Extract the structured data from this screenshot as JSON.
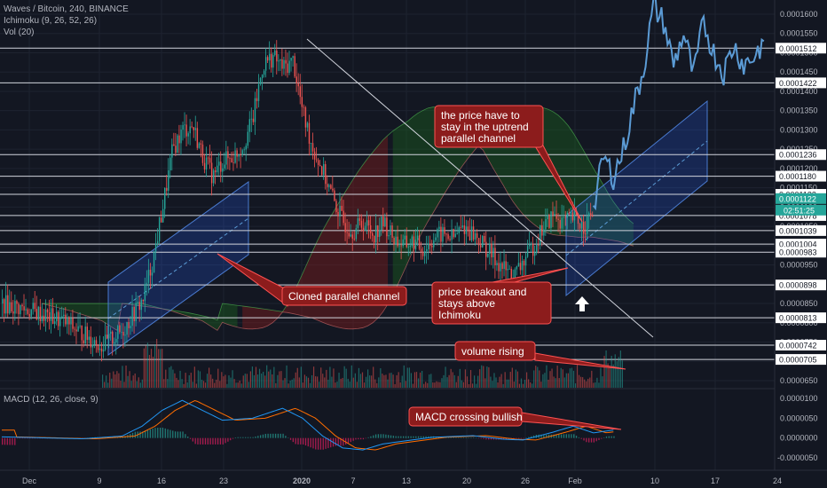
{
  "header": {
    "symbol_line": "Waves / Bitcoin, 240, BINANCE",
    "indicator_1": "Ichimoku (9, 26, 52, 26)",
    "indicator_2": "Vol (20)",
    "macd_label": "MACD (12, 26, close, 9)"
  },
  "colors": {
    "background": "#131722",
    "candle_up": "#26a69a",
    "candle_down": "#ef5350",
    "projection_line": "#5b9bd5",
    "channel_fill": "#2962ff",
    "annotation_bg": "#8c1c1c",
    "annotation_border": "#ff5252",
    "macd_line": "#2196f3",
    "signal_line": "#ff6d00",
    "ichimoku_bull_cloud": "#1b5e20",
    "ichimoku_bear_cloud": "#7f1d1d"
  },
  "chart_data": {
    "type": "candlestick",
    "x_tick_labels": [
      "Dec",
      "9",
      "16",
      "23",
      "2020",
      "7",
      "13",
      "20",
      "26",
      "Feb",
      "10",
      "17",
      "24"
    ],
    "y_ticks": [
      "0.0001600",
      "0.0001550",
      "0.0001500",
      "0.0001450",
      "0.0001400",
      "0.0001350",
      "0.0001300",
      "0.0001250",
      "0.0001200",
      "0.0001150",
      "0.0001100",
      "0.0001050",
      "0.0001000",
      "0.0000950",
      "0.0000900",
      "0.0000850",
      "0.0000800",
      "0.0000750",
      "0.0000700",
      "0.0000650"
    ],
    "ylim": [
      6.4e-05,
      0.000166
    ],
    "horizontal_levels": [
      "0.0001512",
      "0.0001422",
      "0.0001236",
      "0.0001180",
      "0.0001133",
      "0.0001078",
      "0.0001039",
      "0.0001004",
      "0.0000983",
      "0.0000898",
      "0.0000813",
      "0.0000742",
      "0.0000705"
    ],
    "current_price": "0.0001122",
    "countdown": "02:51:25",
    "price_path": [
      {
        "x": 0,
        "y": 8.5e-05
      },
      {
        "x": 3,
        "y": 8.3e-05
      },
      {
        "x": 6,
        "y": 8.05e-05
      },
      {
        "x": 8,
        "y": 7.72e-05
      },
      {
        "x": 10,
        "y": 7.4e-05
      },
      {
        "x": 12,
        "y": 7.8e-05
      },
      {
        "x": 14,
        "y": 8.6e-05
      },
      {
        "x": 15,
        "y": 9.6e-05
      },
      {
        "x": 16,
        "y": 0.00011
      },
      {
        "x": 17,
        "y": 0.000125
      },
      {
        "x": 18,
        "y": 0.00013
      },
      {
        "x": 19,
        "y": 0.000131
      },
      {
        "x": 20,
        "y": 0.000123
      },
      {
        "x": 21,
        "y": 0.000118
      },
      {
        "x": 22,
        "y": 0.000122
      },
      {
        "x": 23,
        "y": 0.000123
      },
      {
        "x": 24,
        "y": 0.000126
      },
      {
        "x": 25,
        "y": 0.000133
      },
      {
        "x": 26,
        "y": 0.000147
      },
      {
        "x": 27,
        "y": 0.000149
      },
      {
        "x": 28,
        "y": 0.000146
      },
      {
        "x": 29,
        "y": 0.000148
      },
      {
        "x": 30,
        "y": 0.000134
      },
      {
        "x": 31,
        "y": 0.000125
      },
      {
        "x": 32,
        "y": 0.000119
      },
      {
        "x": 33,
        "y": 0.000112
      },
      {
        "x": 34,
        "y": 0.000106
      },
      {
        "x": 35,
        "y": 0.000104
      },
      {
        "x": 36,
        "y": 0.000106
      },
      {
        "x": 37,
        "y": 0.000103
      },
      {
        "x": 38,
        "y": 0.000106
      },
      {
        "x": 39,
        "y": 0.000102
      },
      {
        "x": 40,
        "y": 0.0001
      },
      {
        "x": 41,
        "y": 0.000101
      },
      {
        "x": 42,
        "y": 9.9e-05
      },
      {
        "x": 43,
        "y": 0.000102
      },
      {
        "x": 44,
        "y": 0.000103
      },
      {
        "x": 45,
        "y": 0.000102
      },
      {
        "x": 46,
        "y": 0.000105
      },
      {
        "x": 47,
        "y": 0.000103
      },
      {
        "x": 48,
        "y": 0.0001
      },
      {
        "x": 49,
        "y": 9.7e-05
      },
      {
        "x": 50,
        "y": 9.4e-05
      },
      {
        "x": 51,
        "y": 9.2e-05
      },
      {
        "x": 52,
        "y": 9.6e-05
      },
      {
        "x": 53,
        "y": 0.0001
      },
      {
        "x": 54,
        "y": 0.000105
      },
      {
        "x": 55,
        "y": 0.000108
      },
      {
        "x": 56,
        "y": 0.000106
      },
      {
        "x": 57,
        "y": 0.000107
      },
      {
        "x": 58,
        "y": 0.000105
      },
      {
        "x": 59,
        "y": 0.000109
      }
    ],
    "projection_path": [
      {
        "x": 59,
        "y": 0.000109
      },
      {
        "x": 60,
        "y": 0.000123
      },
      {
        "x": 61,
        "y": 0.000118
      },
      {
        "x": 62,
        "y": 0.000125
      },
      {
        "x": 63,
        "y": 0.000136
      },
      {
        "x": 64,
        "y": 0.000146
      },
      {
        "x": 65,
        "y": 0.000162
      },
      {
        "x": 66,
        "y": 0.000158
      },
      {
        "x": 67,
        "y": 0.000147
      },
      {
        "x": 68,
        "y": 0.000155
      },
      {
        "x": 69,
        "y": 0.000144
      },
      {
        "x": 70,
        "y": 0.000158
      },
      {
        "x": 71,
        "y": 0.00015
      },
      {
        "x": 72,
        "y": 0.000145
      },
      {
        "x": 73,
        "y": 0.000152
      },
      {
        "x": 74,
        "y": 0.000147
      },
      {
        "x": 75,
        "y": 0.000149
      },
      {
        "x": 76,
        "y": 0.000153
      }
    ],
    "macd_y_ticks": [
      "0.0000100",
      "0.0000050",
      "0.0000000",
      "-0.0000050"
    ],
    "macd_ylim": [
      -8.5e-06,
      1.15e-05
    ]
  },
  "annotations": {
    "uptrend_note": "the price have to stay in the uptrend parallel channel",
    "cloned_channel": "Cloned parallel channel",
    "breakout": "price breakout and stays above Ichimoku",
    "volume": "volume rising",
    "macd": "MACD crossing bullish"
  }
}
